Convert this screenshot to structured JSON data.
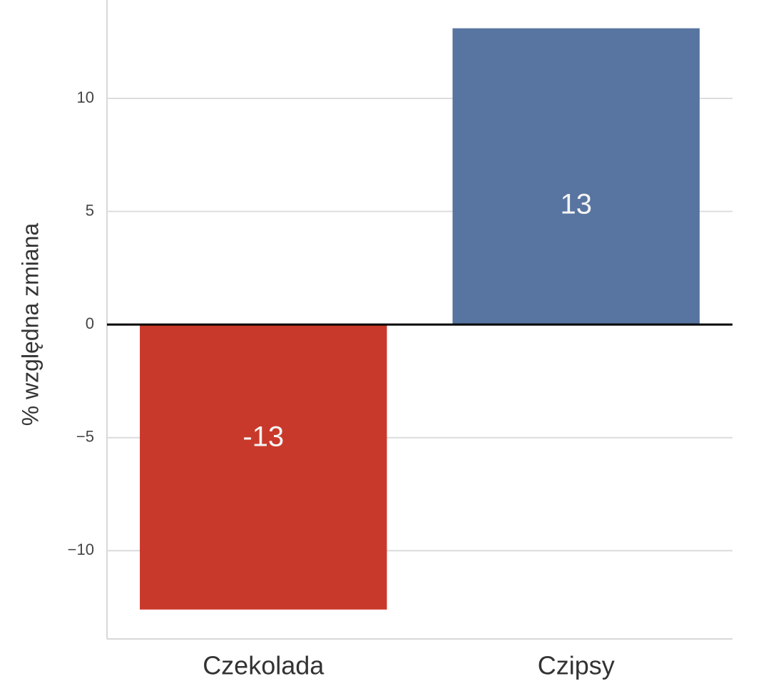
{
  "chart_data": {
    "type": "bar",
    "y_label": "% względna zmiana",
    "categories": [
      "Czekolada",
      "Czipsy"
    ],
    "values": [
      -12.6,
      13.1
    ],
    "value_labels": [
      "-13",
      "13"
    ],
    "colors": [
      "#c9392b",
      "#5874a0"
    ],
    "ylim": [
      -13.9,
      14.35
    ],
    "yticks": [
      {
        "value": -10,
        "label": "−10"
      },
      {
        "value": -5,
        "label": "−5"
      },
      0,
      5,
      10
    ],
    "grid": true
  }
}
